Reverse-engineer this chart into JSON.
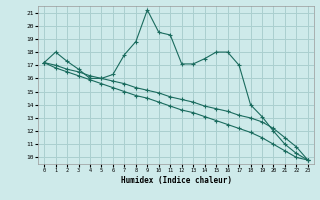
{
  "xlabel": "Humidex (Indice chaleur)",
  "bg_color": "#ceeaea",
  "grid_color": "#aacfcf",
  "line_color": "#1a6b5e",
  "xlim": [
    -0.5,
    23.5
  ],
  "ylim": [
    9.5,
    21.5
  ],
  "xticks": [
    0,
    1,
    2,
    3,
    4,
    5,
    6,
    7,
    8,
    9,
    10,
    11,
    12,
    13,
    14,
    15,
    16,
    17,
    18,
    19,
    20,
    21,
    22,
    23
  ],
  "yticks": [
    10,
    11,
    12,
    13,
    14,
    15,
    16,
    17,
    18,
    19,
    20,
    21
  ],
  "line1_x": [
    0,
    1,
    2,
    3,
    4,
    5,
    6,
    7,
    8,
    9,
    10,
    11,
    12,
    13,
    14,
    15,
    16,
    17,
    18,
    19,
    20,
    21,
    22,
    23
  ],
  "line1_y": [
    17.2,
    18.0,
    17.3,
    16.7,
    16.0,
    16.0,
    16.3,
    17.8,
    18.8,
    21.2,
    19.5,
    19.3,
    17.1,
    17.1,
    17.5,
    18.0,
    18.0,
    17.0,
    14.0,
    13.1,
    12.0,
    11.0,
    10.3,
    9.8
  ],
  "line2_x": [
    0,
    1,
    2,
    3,
    4,
    5,
    6,
    7,
    8,
    9,
    10,
    11,
    12,
    13,
    14,
    15,
    16,
    17,
    18,
    19,
    20,
    21,
    22,
    23
  ],
  "line2_y": [
    17.2,
    17.0,
    16.7,
    16.5,
    16.2,
    16.0,
    15.8,
    15.6,
    15.3,
    15.1,
    14.9,
    14.6,
    14.4,
    14.2,
    13.9,
    13.7,
    13.5,
    13.2,
    13.0,
    12.7,
    12.2,
    11.5,
    10.8,
    9.8
  ],
  "line3_x": [
    0,
    1,
    2,
    3,
    4,
    5,
    6,
    7,
    8,
    9,
    10,
    11,
    12,
    13,
    14,
    15,
    16,
    17,
    18,
    19,
    20,
    21,
    22,
    23
  ],
  "line3_y": [
    17.2,
    16.8,
    16.5,
    16.2,
    15.9,
    15.6,
    15.3,
    15.0,
    14.7,
    14.5,
    14.2,
    13.9,
    13.6,
    13.4,
    13.1,
    12.8,
    12.5,
    12.2,
    11.9,
    11.5,
    11.0,
    10.5,
    10.0,
    9.8
  ]
}
